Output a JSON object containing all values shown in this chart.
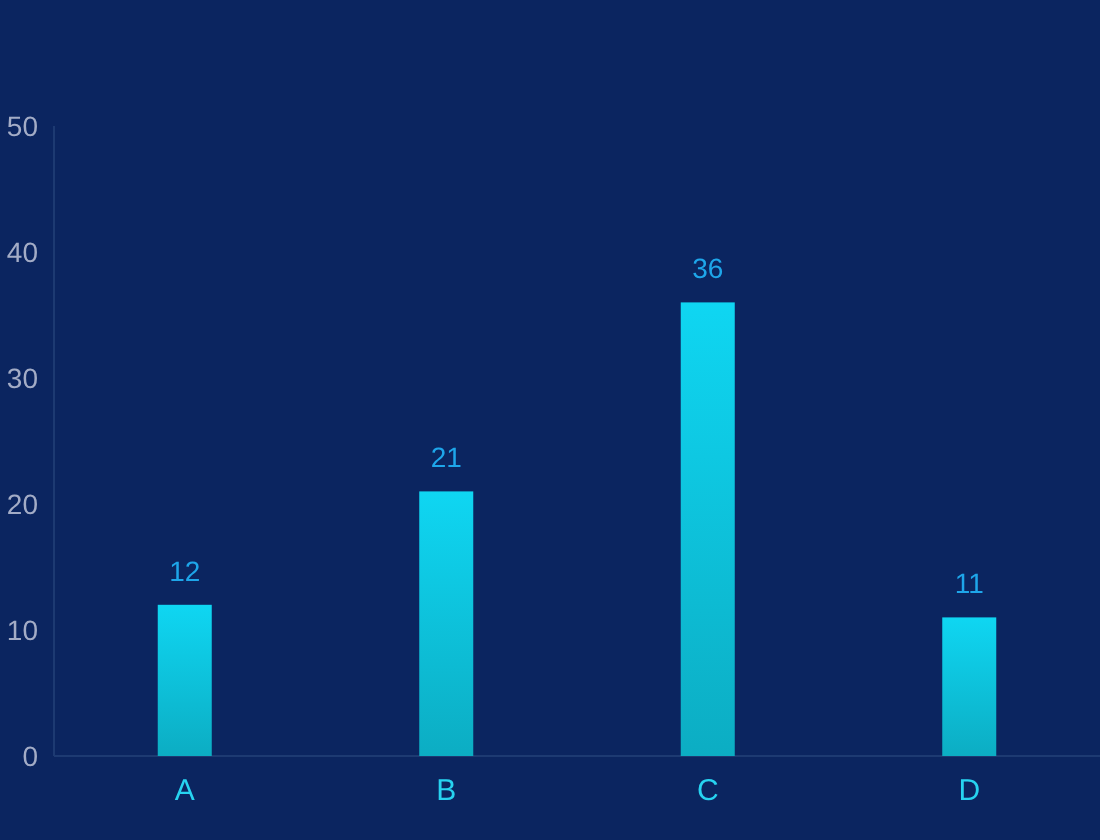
{
  "chart_data": {
    "type": "bar",
    "categories": [
      "A",
      "B",
      "C",
      "D"
    ],
    "values": [
      12,
      21,
      36,
      11
    ],
    "color": "#0fd6f2",
    "ylim": [
      0,
      50
    ],
    "yticks": [
      0,
      10,
      20,
      30,
      40,
      50
    ],
    "data_labels": true,
    "grid": false
  }
}
